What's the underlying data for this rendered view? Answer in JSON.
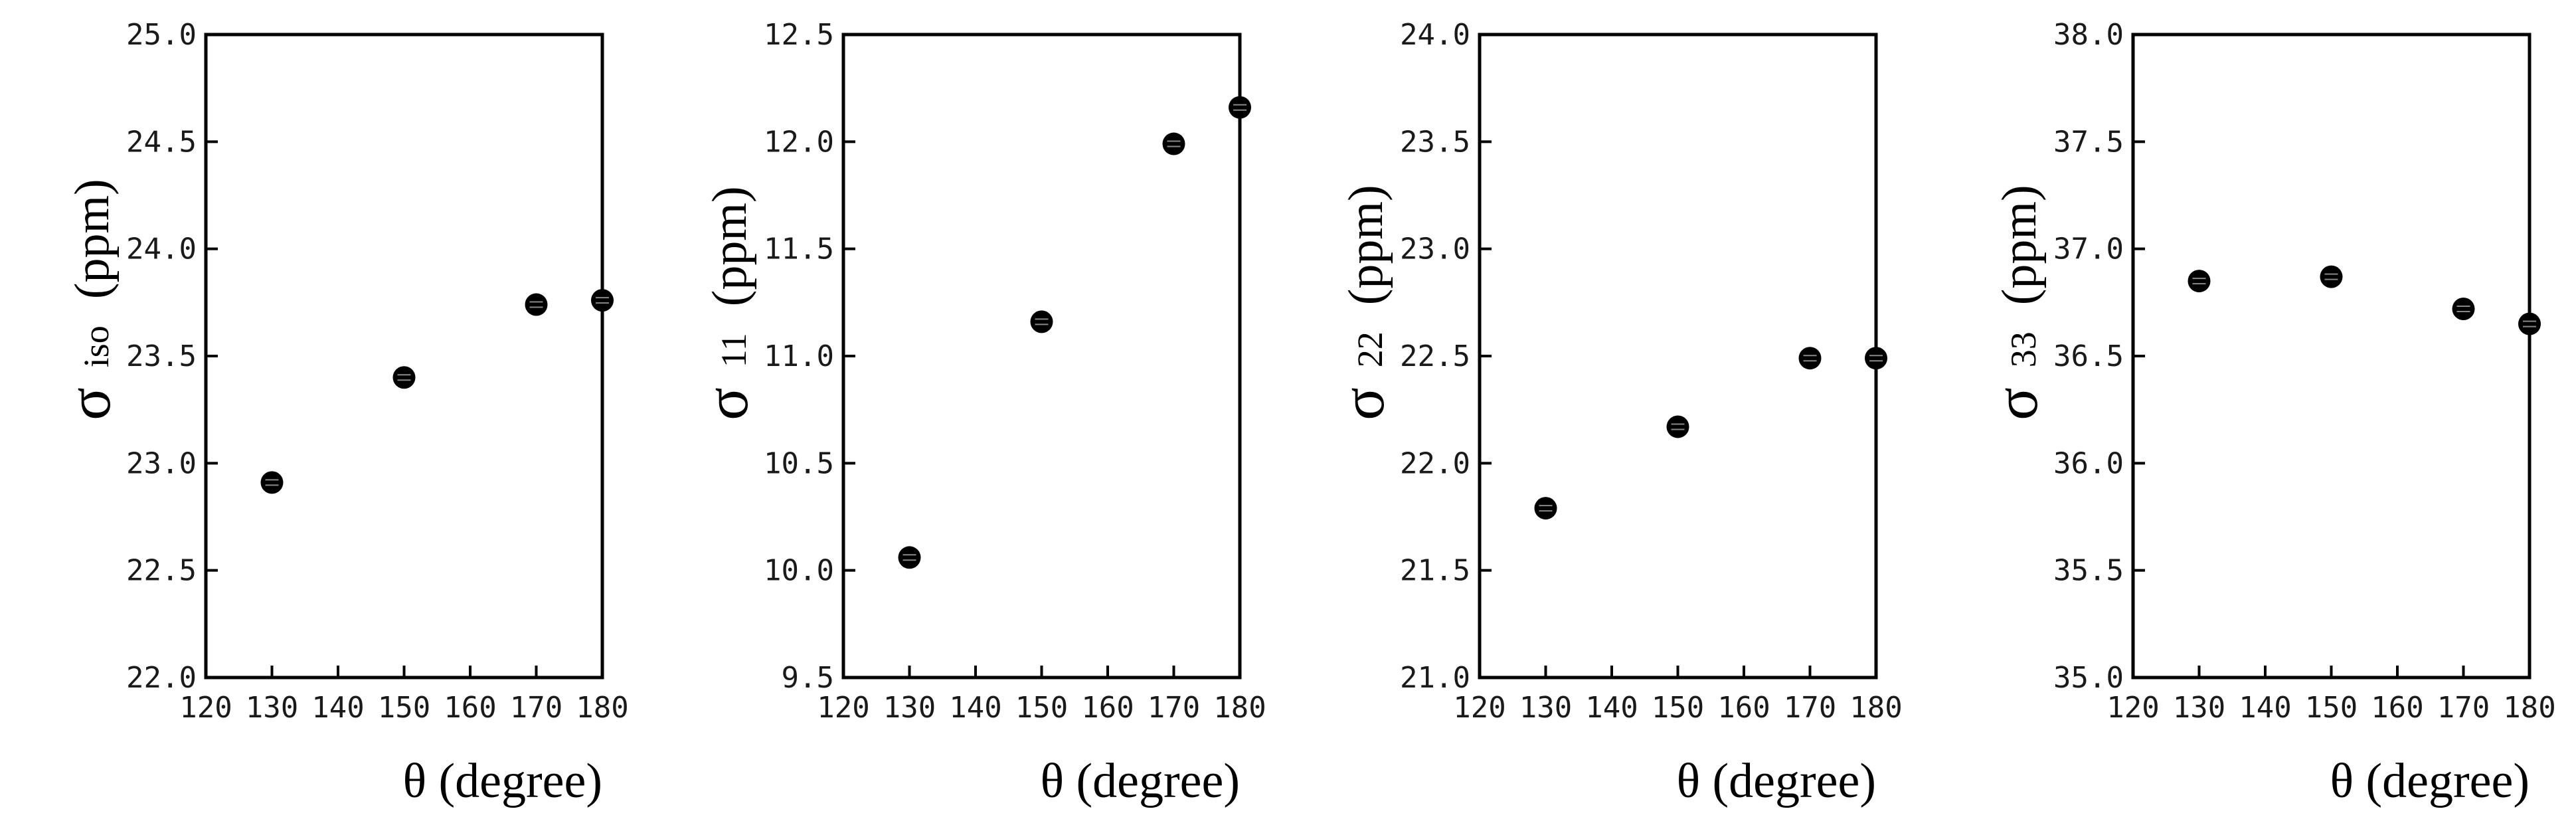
{
  "chart_data": [
    {
      "type": "scatter",
      "xlabel": "θ (degree)",
      "ylabel": {
        "symbol": "σ",
        "subscript": "iso",
        "unit": "(ppm)"
      },
      "xlim": [
        120,
        180
      ],
      "ylim": [
        22.0,
        25.0
      ],
      "x_ticks": [
        "120",
        "130",
        "140",
        "150",
        "160",
        "170",
        "180"
      ],
      "y_ticks": [
        "22.0",
        "22.5",
        "23.0",
        "23.5",
        "24.0",
        "24.5",
        "25.0"
      ],
      "x": [
        130,
        150,
        170,
        180
      ],
      "y": [
        22.91,
        23.4,
        23.74,
        23.76
      ]
    },
    {
      "type": "scatter",
      "xlabel": "θ (degree)",
      "ylabel": {
        "symbol": "σ",
        "subscript": "11",
        "unit": "(ppm)"
      },
      "xlim": [
        120,
        180
      ],
      "ylim": [
        9.5,
        12.5
      ],
      "x_ticks": [
        "120",
        "130",
        "140",
        "150",
        "160",
        "170",
        "180"
      ],
      "y_ticks": [
        "9.5",
        "10.0",
        "10.5",
        "11.0",
        "11.5",
        "12.0",
        "12.5"
      ],
      "x": [
        130,
        150,
        170,
        180
      ],
      "y": [
        10.06,
        11.16,
        11.99,
        12.16
      ]
    },
    {
      "type": "scatter",
      "xlabel": "θ (degree)",
      "ylabel": {
        "symbol": "σ",
        "subscript": "22",
        "unit": "(ppm)"
      },
      "xlim": [
        120,
        180
      ],
      "ylim": [
        21.0,
        24.0
      ],
      "x_ticks": [
        "120",
        "130",
        "140",
        "150",
        "160",
        "170",
        "180"
      ],
      "y_ticks": [
        "21.0",
        "21.5",
        "22.0",
        "22.5",
        "23.0",
        "23.5",
        "24.0"
      ],
      "x": [
        130,
        150,
        170,
        180
      ],
      "y": [
        21.79,
        22.17,
        22.49,
        22.49
      ]
    },
    {
      "type": "scatter",
      "xlabel": "θ (degree)",
      "ylabel": {
        "symbol": "σ",
        "subscript": "33",
        "unit": "(ppm)"
      },
      "xlim": [
        120,
        180
      ],
      "ylim": [
        35.0,
        38.0
      ],
      "x_ticks": [
        "120",
        "130",
        "140",
        "150",
        "160",
        "170",
        "180"
      ],
      "y_ticks": [
        "35.0",
        "35.5",
        "36.0",
        "36.5",
        "37.0",
        "37.5",
        "38.0"
      ],
      "x": [
        130,
        150,
        170,
        180
      ],
      "y": [
        36.85,
        36.87,
        36.72,
        36.65
      ]
    }
  ]
}
